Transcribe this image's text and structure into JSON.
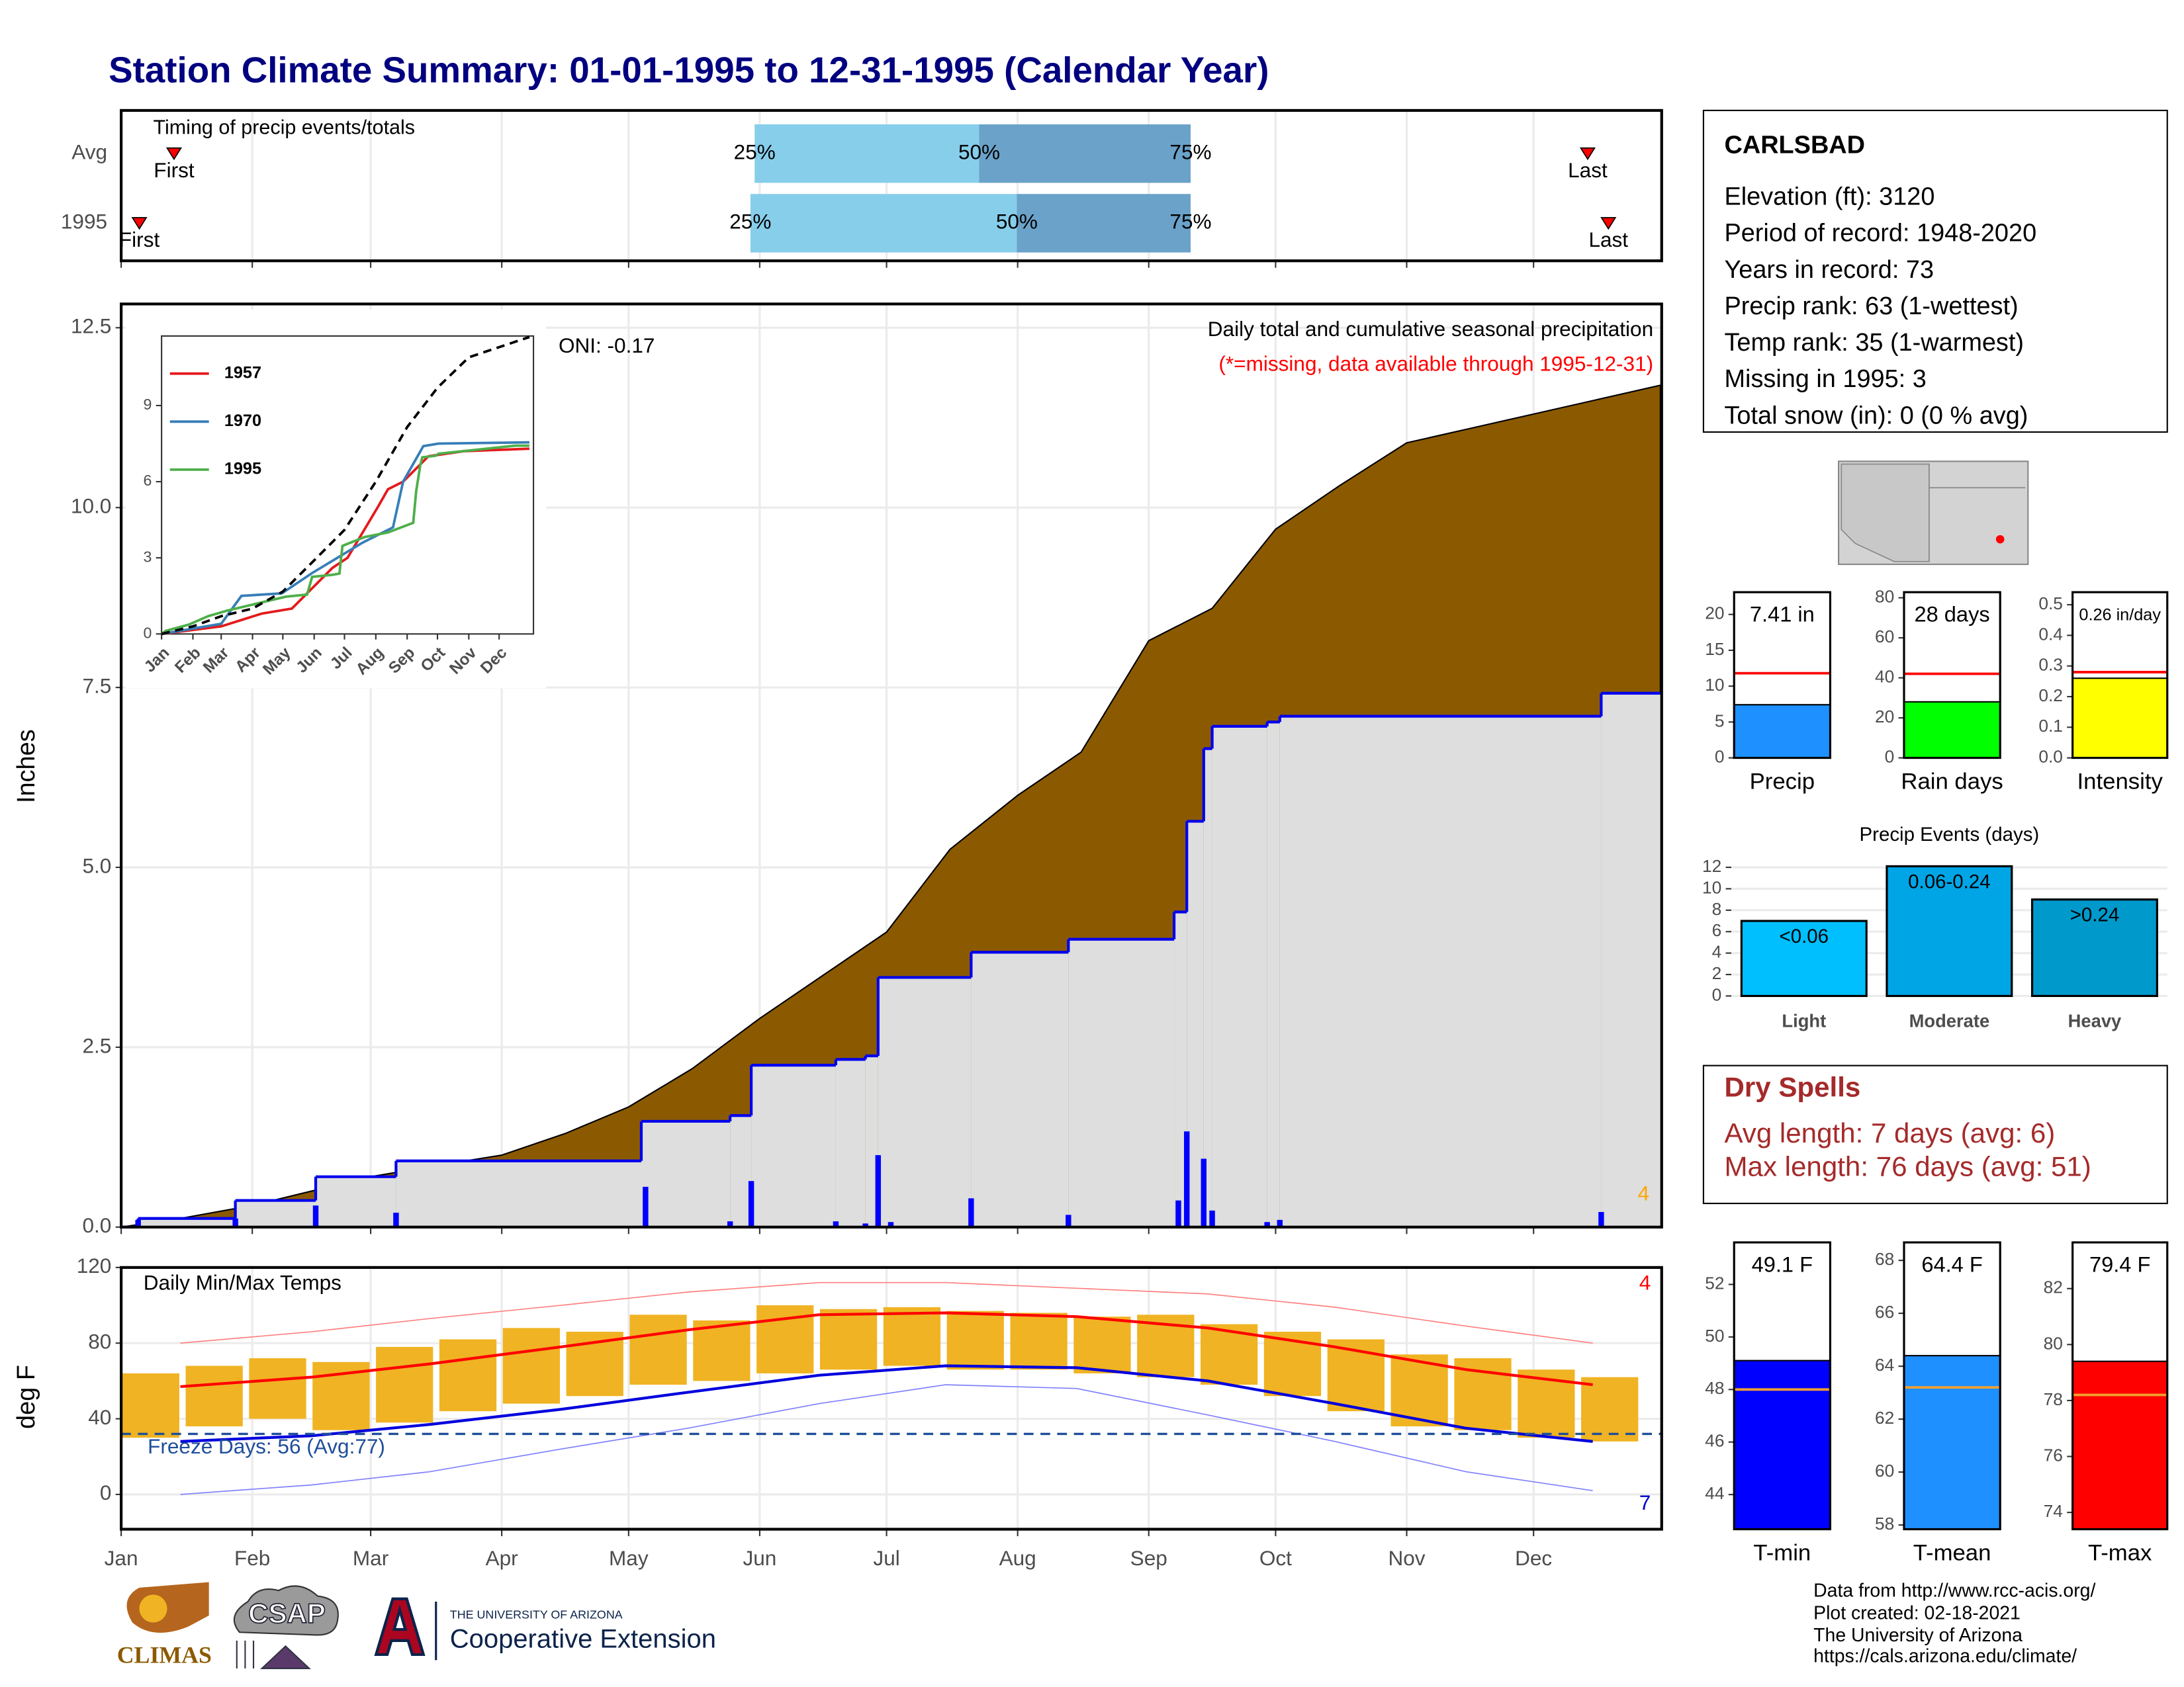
{
  "page_title": "Station Climate Summary: 01-01-1995 to 12-31-1995 (Calendar Year)",
  "station": {
    "name": "CARLSBAD",
    "lines": [
      "Elevation (ft): 3120",
      "Period of record: 1948-2020",
      "Years in record: 73",
      "Precip rank: 63 (1-wettest)",
      "Temp rank: 35 (1-warmest)",
      "Missing in 1995: 3",
      "Total snow (in): 0 (0 % avg)"
    ]
  },
  "dry_spells": {
    "title": "Dry Spells",
    "lines": [
      "Avg length: 7 days (avg: 6)",
      "Max length: 76 days (avg: 51)"
    ]
  },
  "footer": {
    "lines": [
      "Data from http://www.rcc-acis.org/",
      "Plot created: 02-18-2021",
      "The University of Arizona",
      "https://cals.arizona.edu/climate/"
    ]
  },
  "logos": {
    "climas": "CLIMAS",
    "csap": "CSAP",
    "ua": "THE UNIVERSITY OF ARIZONA",
    "coop": "Cooperative Extension"
  },
  "chart_data": [
    {
      "type": "timing",
      "title": "Timing of precip events/totals",
      "xlim": [
        1,
        365.3
      ],
      "first_label": "First",
      "last_label": "Last",
      "quantile_labels": [
        "25%",
        "50%",
        "75%"
      ],
      "rows": [
        {
          "name": "Avg",
          "first": 13.5,
          "last": 347.8,
          "quantiles": [
            150.8,
            203.9,
            253.9
          ]
        },
        {
          "name": "1995",
          "first": 5.3,
          "last": 352.7,
          "quantiles": [
            149.8,
            212.8,
            253.9
          ]
        }
      ],
      "colors": [
        "#87ceeb",
        "#6aa2c9"
      ]
    },
    {
      "type": "precip",
      "ylabel": "Inches",
      "title": "Daily total and cumulative seasonal precipitation",
      "subtitle": "(*=missing, data available through 1995-12-31)",
      "oni": "ONI: -0.17",
      "missing_count": "4",
      "xlim": [
        1,
        365.3
      ],
      "ylim": [
        0,
        12.83
      ],
      "yticks": [
        {
          "value": 0,
          "label": "0.0"
        },
        2.5,
        {
          "value": 5,
          "label": "5.0"
        },
        7.5,
        {
          "value": 10,
          "label": "10.0"
        },
        12.5
      ],
      "grid": true,
      "average": {
        "color": "#8b5a00",
        "x": [
          1,
          15,
          32,
          46,
          60,
          75,
          91,
          106,
          121,
          136,
          152,
          167,
          182,
          197,
          213,
          228,
          244,
          259,
          274,
          289,
          305,
          320,
          335,
          350,
          365
        ],
        "values": [
          0,
          0.12,
          0.3,
          0.5,
          0.7,
          0.85,
          1.0,
          1.3,
          1.67,
          2.2,
          2.9,
          3.5,
          4.1,
          5.25,
          6.0,
          6.6,
          8.15,
          8.6,
          9.7,
          10.3,
          10.9,
          11.1,
          11.3,
          11.5,
          11.7
        ]
      },
      "cumulative": {
        "color": "#0000ee",
        "fill": "#dedede",
        "x": [
          1,
          5,
          28,
          47,
          66,
          124,
          145,
          150,
          170,
          177,
          180,
          202,
          225,
          250,
          253,
          257,
          259,
          272,
          275,
          351
        ],
        "values": [
          0,
          0.12,
          0.37,
          0.7,
          0.92,
          1.47,
          1.55,
          2.25,
          2.33,
          2.38,
          3.47,
          3.82,
          4.0,
          4.38,
          5.64,
          6.65,
          6.96,
          7.02,
          7.1,
          7.42
        ]
      },
      "daily": {
        "color": "#0000ff",
        "x": [
          5,
          28,
          47,
          66,
          125,
          145,
          150,
          170,
          177,
          180,
          183,
          202,
          225,
          251,
          253,
          257,
          259,
          272,
          275,
          351
        ],
        "values": [
          0.1,
          0.12,
          0.3,
          0.2,
          0.56,
          0.08,
          0.64,
          0.08,
          0.05,
          1.0,
          0.07,
          0.4,
          0.17,
          0.37,
          1.33,
          0.95,
          0.23,
          0.07,
          0.1,
          0.21
        ]
      }
    },
    {
      "type": "line",
      "xlim": [
        1,
        369
      ],
      "ylim": [
        0,
        11.74
      ],
      "yticks": [
        0,
        3,
        6,
        9
      ],
      "xticks": [
        {
          "value": 1,
          "label": "Jan"
        },
        {
          "value": 32,
          "label": "Feb"
        },
        {
          "value": 60,
          "label": "Mar"
        },
        {
          "value": 91,
          "label": "Apr"
        },
        {
          "value": 121,
          "label": "May"
        },
        {
          "value": 152,
          "label": "Jun"
        },
        {
          "value": 182,
          "label": "Jul"
        },
        {
          "value": 213,
          "label": "Aug"
        },
        {
          "value": 244,
          "label": "Sep"
        },
        {
          "value": 274,
          "label": "Oct"
        },
        {
          "value": 305,
          "label": "Nov"
        },
        {
          "value": 335,
          "label": "Dec"
        }
      ],
      "series": [
        {
          "name": "1957",
          "color": "#e41a1c",
          "x": [
            1,
            60,
            100,
            130,
            150,
            170,
            185,
            200,
            215,
            225,
            240,
            265,
            300,
            365
          ],
          "values": [
            0,
            0.3,
            0.8,
            1.0,
            1.8,
            2.6,
            3.0,
            4.0,
            5.0,
            5.7,
            6.0,
            7.0,
            7.2,
            7.3
          ]
        },
        {
          "name": "1970",
          "color": "#377eb8",
          "x": [
            1,
            60,
            80,
            120,
            150,
            175,
            200,
            230,
            240,
            260,
            275,
            365
          ],
          "values": [
            0,
            0.4,
            1.5,
            1.6,
            2.4,
            3.0,
            3.6,
            4.2,
            6.0,
            7.4,
            7.5,
            7.55
          ]
        },
        {
          "name": "1995",
          "color": "#4daf4a",
          "x": [
            1,
            5,
            28,
            47,
            66,
            124,
            145,
            150,
            170,
            177,
            180,
            202,
            225,
            250,
            253,
            257,
            259,
            272,
            275,
            351,
            365
          ],
          "values": [
            0,
            0.12,
            0.37,
            0.7,
            0.92,
            1.47,
            1.55,
            2.25,
            2.33,
            2.38,
            3.47,
            3.82,
            4.0,
            4.38,
            5.64,
            6.65,
            6.96,
            7.02,
            7.1,
            7.42,
            7.42
          ]
        },
        {
          "color": "#000000",
          "dash": true,
          "x": [
            1,
            32,
            60,
            91,
            121,
            152,
            182,
            213,
            244,
            274,
            305,
            335,
            365
          ],
          "values": [
            0,
            0.3,
            0.7,
            1.0,
            1.67,
            2.9,
            4.1,
            6.0,
            8.15,
            9.7,
            10.9,
            11.3,
            11.7
          ]
        }
      ]
    },
    {
      "type": "temp",
      "title": "Daily Min/Max Temps",
      "ylabel": "deg F",
      "freeze_label": "Freeze Days: 56 (Avg:77)",
      "freeze_line": 32,
      "record_high_count": "4",
      "record_low_count": "7",
      "xlim": [
        1,
        365.3
      ],
      "ylim": [
        -18.4,
        120
      ],
      "yticks": [
        0,
        40,
        80,
        120
      ],
      "grid": true,
      "xticks": [
        {
          "value": 1,
          "label": "Jan"
        },
        {
          "value": 32,
          "label": "Feb"
        },
        {
          "value": 60,
          "label": "Mar"
        },
        {
          "value": 91,
          "label": "Apr"
        },
        {
          "value": 121,
          "label": "May"
        },
        {
          "value": 152,
          "label": "Jun"
        },
        {
          "value": 182,
          "label": "Jul"
        },
        {
          "value": 213,
          "label": "Aug"
        },
        {
          "value": 244,
          "label": "Sep"
        },
        {
          "value": 274,
          "label": "Oct"
        },
        {
          "value": 305,
          "label": "Nov"
        },
        {
          "value": 335,
          "label": "Dec"
        }
      ],
      "range": {
        "color": "#f0b323",
        "x": [
          8,
          23,
          38,
          53,
          68,
          83,
          98,
          113,
          128,
          143,
          158,
          173,
          188,
          203,
          218,
          233,
          248,
          263,
          278,
          293,
          308,
          323,
          338,
          353
        ],
        "high": [
          64,
          68,
          72,
          70,
          78,
          82,
          88,
          86,
          95,
          92,
          100,
          98,
          99,
          97,
          96,
          94,
          95,
          90,
          86,
          82,
          74,
          72,
          66,
          62
        ],
        "low": [
          30,
          36,
          40,
          34,
          38,
          44,
          48,
          52,
          58,
          60,
          64,
          66,
          68,
          66,
          66,
          64,
          62,
          58,
          52,
          44,
          36,
          34,
          30,
          28
        ]
      },
      "lines": [
        {
          "color": "#ff8080",
          "width": 0.8,
          "x": [
            15,
            46,
            74,
            105,
            135,
            166,
            196,
            227,
            258,
            288,
            319,
            349
          ],
          "values": [
            80,
            86,
            93,
            100,
            107,
            112,
            112,
            109,
            106,
            99,
            89,
            80
          ]
        },
        {
          "color": "#8080ff",
          "width": 0.8,
          "x": [
            15,
            46,
            74,
            105,
            135,
            166,
            196,
            227,
            258,
            288,
            319,
            349
          ],
          "values": [
            0,
            5,
            12,
            24,
            35,
            48,
            58,
            56,
            42,
            28,
            12,
            2
          ]
        },
        {
          "color": "#ff0000",
          "width": 2,
          "x": [
            15,
            46,
            74,
            105,
            135,
            166,
            196,
            227,
            258,
            288,
            319,
            349
          ],
          "values": [
            57,
            62,
            69,
            78,
            87,
            95,
            96,
            94,
            88,
            78,
            66,
            58
          ]
        },
        {
          "color": "#0000dd",
          "width": 2,
          "x": [
            15,
            46,
            74,
            105,
            135,
            166,
            196,
            227,
            258,
            288,
            319,
            349
          ],
          "values": [
            28,
            31,
            37,
            45,
            54,
            63,
            68,
            67,
            60,
            48,
            35,
            28
          ]
        }
      ]
    },
    {
      "type": "summary-bar",
      "categories": [
        "Precip"
      ],
      "values": [
        7.41
      ],
      "value_labels": [
        "7.41 in"
      ],
      "color": "#1e90ff",
      "reference": 11.8,
      "reference_color": "#ff0000",
      "ylim": [
        0,
        23.1
      ],
      "yticks": [
        0,
        5,
        10,
        15,
        20
      ]
    },
    {
      "type": "summary-bar",
      "categories": [
        "Rain days"
      ],
      "values": [
        28
      ],
      "value_labels": [
        "28 days"
      ],
      "color": "#00ff00",
      "reference": 42,
      "reference_color": "#ff0000",
      "ylim": [
        0,
        82.8
      ],
      "yticks": [
        0,
        20,
        40,
        60,
        80
      ]
    },
    {
      "type": "summary-bar",
      "categories": [
        "Intensity"
      ],
      "values": [
        0.26
      ],
      "value_labels": [
        "0.26 in/day"
      ],
      "color": "#ffff00",
      "reference": 0.28,
      "reference_color": "#ff0000",
      "ylim": [
        0,
        0.541
      ],
      "yticks": [
        {
          "value": 0,
          "label": "0.0"
        },
        0.1,
        0.2,
        0.3,
        0.4,
        0.5
      ]
    },
    {
      "type": "bar",
      "title": "Precip Events (days)",
      "categories": [
        "Light",
        "Moderate",
        "Heavy"
      ],
      "values": [
        7,
        12.1,
        9
      ],
      "bar_labels": [
        "<0.06",
        "0.06-0.24",
        ">0.24"
      ],
      "colors": [
        "#00bfff",
        "#00a5e6",
        "#0099cc"
      ],
      "ylim": [
        0,
        12.6
      ],
      "yticks": [
        0,
        2,
        4,
        6,
        8,
        10,
        12
      ],
      "grid": true
    },
    {
      "type": "summary-bar",
      "categories": [
        "T-min"
      ],
      "values": [
        49.1
      ],
      "value_labels": [
        "49.1 F"
      ],
      "color": "#0000ff",
      "reference": 48.0,
      "reference_color": "#f0a030",
      "ylim": [
        42.68,
        53.6
      ],
      "yticks": [
        44,
        46,
        48,
        50,
        52
      ]
    },
    {
      "type": "summary-bar",
      "categories": [
        "T-mean"
      ],
      "values": [
        64.4
      ],
      "value_labels": [
        "64.4 F"
      ],
      "color": "#1e90ff",
      "reference": 63.2,
      "reference_color": "#f0a030",
      "ylim": [
        57.84,
        68.68
      ],
      "yticks": [
        58,
        60,
        62,
        64,
        66,
        68
      ]
    },
    {
      "type": "summary-bar",
      "categories": [
        "T-max"
      ],
      "values": [
        79.4
      ],
      "value_labels": [
        "79.4 F"
      ],
      "color": "#ff0000",
      "reference": 78.2,
      "reference_color": "#f0a030",
      "ylim": [
        73.4,
        83.65
      ],
      "yticks": [
        74,
        76,
        78,
        80,
        82
      ]
    }
  ]
}
